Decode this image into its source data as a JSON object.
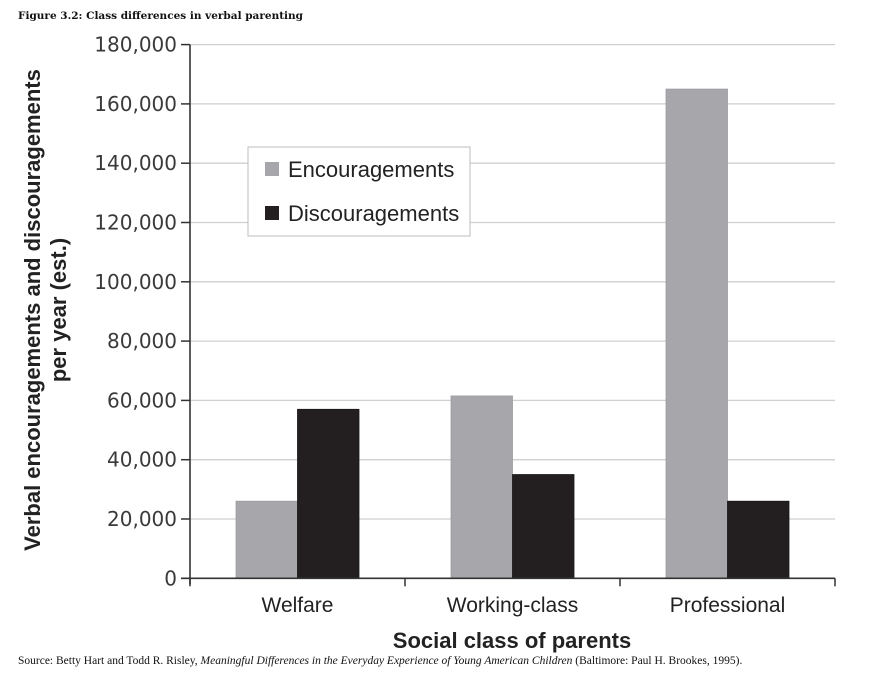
{
  "figure": {
    "title": "Figure 3.2: Class differences in verbal parenting",
    "source_prefix": "Source: Betty Hart and Todd R. Risley, ",
    "source_title": "Meaningful Differences in the Everyday Experience of Young American Children",
    "source_suffix": " (Baltimore: Paul H. Brookes, 1995)."
  },
  "colors": {
    "encouragements": "#a7a6ab",
    "discouragements": "#231f20",
    "grid": "#cfcfcf",
    "axis": "#333333"
  },
  "chart_data": {
    "type": "bar",
    "title": "Class differences in verbal parenting",
    "xlabel": "Social class of parents",
    "ylabel_lines": [
      "Verbal encouragements and discouragements",
      "per year (est.)"
    ],
    "categories": [
      "Welfare",
      "Working-class",
      "Professional"
    ],
    "series": [
      {
        "name": "Encouragements",
        "values": [
          26000,
          61500,
          165000
        ]
      },
      {
        "name": "Discouragements",
        "values": [
          57000,
          35000,
          26000
        ]
      }
    ],
    "ylim": [
      0,
      180000
    ],
    "yticks": [
      0,
      20000,
      40000,
      60000,
      80000,
      100000,
      120000,
      140000,
      160000,
      180000
    ],
    "ytick_labels": [
      "0",
      "20,000",
      "40,000",
      "60,000",
      "80,000",
      "100,000",
      "120,000",
      "140,000",
      "160,000",
      "180,000"
    ],
    "grid": true,
    "legend": {
      "placement": "upper-left-inside",
      "entries": [
        "Encouragements",
        "Discouragements"
      ]
    }
  }
}
